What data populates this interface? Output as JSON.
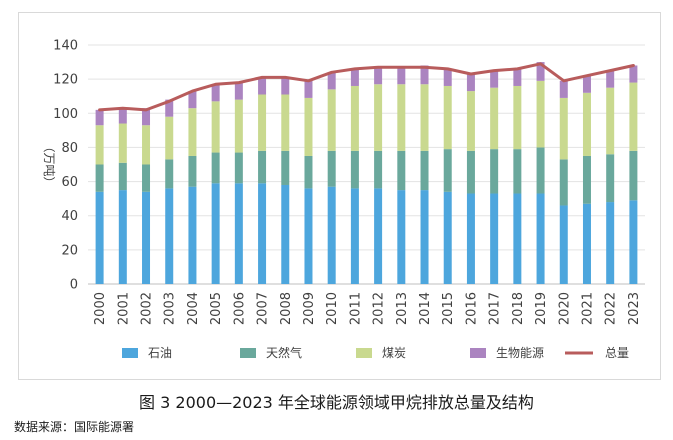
{
  "caption": "图 3   2000—2023 年全球能源领域甲烷排放总量及结构",
  "source": "数据来源：国际能源署",
  "chart_data": {
    "type": "bar",
    "stacked": true,
    "ylabel": "（万吨）",
    "ylim": [
      0,
      140
    ],
    "yticks": [
      0,
      20,
      40,
      60,
      80,
      100,
      120,
      140
    ],
    "grid": true,
    "legend_position": "bottom",
    "categories": [
      "2000",
      "2001",
      "2002",
      "2003",
      "2004",
      "2005",
      "2006",
      "2007",
      "2008",
      "2009",
      "2010",
      "2011",
      "2012",
      "2013",
      "2014",
      "2015",
      "2016",
      "2017",
      "2018",
      "2019",
      "2020",
      "2021",
      "2022",
      "2023"
    ],
    "series": [
      {
        "name": "石油",
        "type": "bar",
        "color": "#4da6dd",
        "values": [
          54,
          55,
          54,
          56,
          57,
          59,
          59,
          59,
          58,
          56,
          57,
          56,
          56,
          55,
          55,
          54,
          53,
          53,
          53,
          53,
          46,
          47,
          48,
          49
        ]
      },
      {
        "name": "天然气",
        "type": "bar",
        "color": "#6aa89c",
        "values": [
          16,
          16,
          16,
          17,
          18,
          18,
          18,
          19,
          20,
          19,
          21,
          22,
          22,
          23,
          23,
          25,
          25,
          26,
          26,
          27,
          27,
          28,
          28,
          29
        ]
      },
      {
        "name": "煤炭",
        "type": "bar",
        "color": "#c9d98f",
        "values": [
          23,
          23,
          23,
          25,
          28,
          30,
          31,
          33,
          33,
          34,
          36,
          38,
          39,
          39,
          39,
          37,
          35,
          36,
          37,
          39,
          36,
          37,
          39,
          40
        ]
      },
      {
        "name": "生物能源",
        "type": "bar",
        "color": "#ab84c0",
        "values": [
          9,
          9,
          10,
          10,
          10,
          10,
          10,
          10,
          10,
          10,
          10,
          10,
          10,
          10,
          11,
          10,
          10,
          10,
          10,
          11,
          10,
          10,
          10,
          10
        ]
      },
      {
        "name": "总量",
        "type": "line",
        "color": "#b85c5c",
        "values": [
          102,
          103,
          102,
          107,
          113,
          117,
          118,
          121,
          121,
          119,
          124,
          126,
          127,
          127,
          127,
          126,
          123,
          125,
          126,
          129,
          119,
          122,
          125,
          128
        ]
      }
    ]
  }
}
